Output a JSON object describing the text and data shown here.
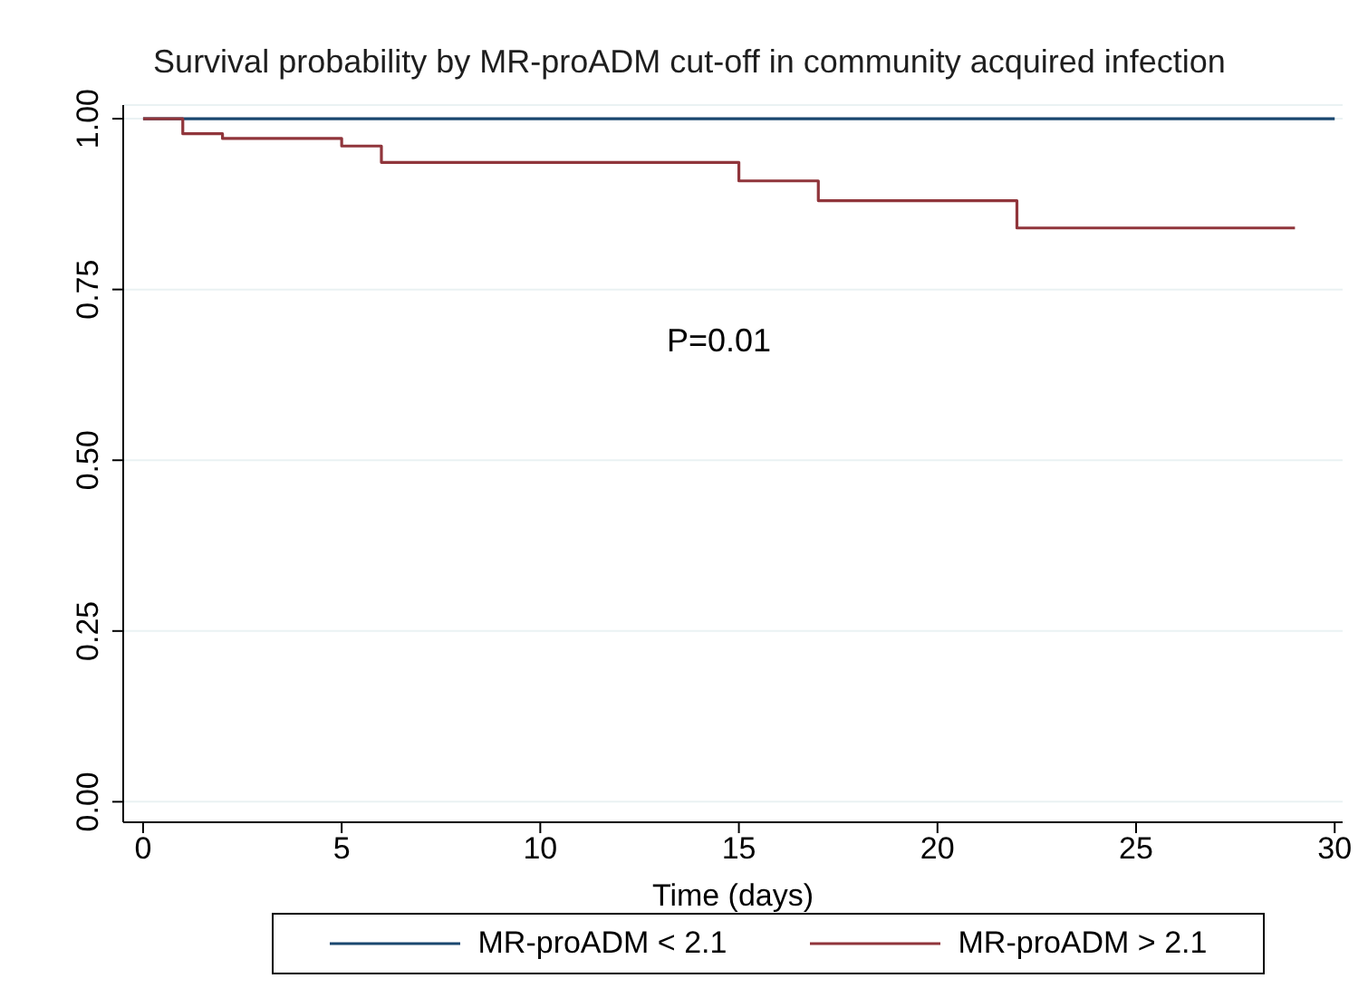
{
  "chart_data": {
    "type": "step",
    "title": "Survival probability by MR-proADM cut-off in community acquired infection",
    "xlabel": "Time (days)",
    "xlim": [
      -0.5,
      30.2
    ],
    "xticks": [
      0,
      5,
      10,
      15,
      20,
      25,
      30
    ],
    "ylim": [
      -0.03,
      1.02
    ],
    "yticks": [
      {
        "value": 0,
        "label": "0.00"
      },
      {
        "value": 0.25,
        "label": "0.25"
      },
      {
        "value": 0.5,
        "label": "0.50"
      },
      {
        "value": 0.75,
        "label": "0.75"
      },
      {
        "value": 1,
        "label": "1.00"
      }
    ],
    "grid": "y",
    "legend": "bottom",
    "marker": "none",
    "line_style": "solid",
    "annotations": [
      "P=0.01"
    ],
    "series": [
      {
        "name": "MR-proADM < 2.1",
        "color": "#1a476f",
        "x": [
          0,
          30
        ],
        "values": [
          1,
          1
        ]
      },
      {
        "name": "MR-proADM > 2.1",
        "color": "#90353b",
        "x": [
          0,
          1,
          2,
          5,
          6,
          15,
          17,
          22,
          29
        ],
        "values": [
          1,
          0.978,
          0.971,
          0.96,
          0.936,
          0.909,
          0.88,
          0.84,
          0.84
        ]
      }
    ]
  }
}
